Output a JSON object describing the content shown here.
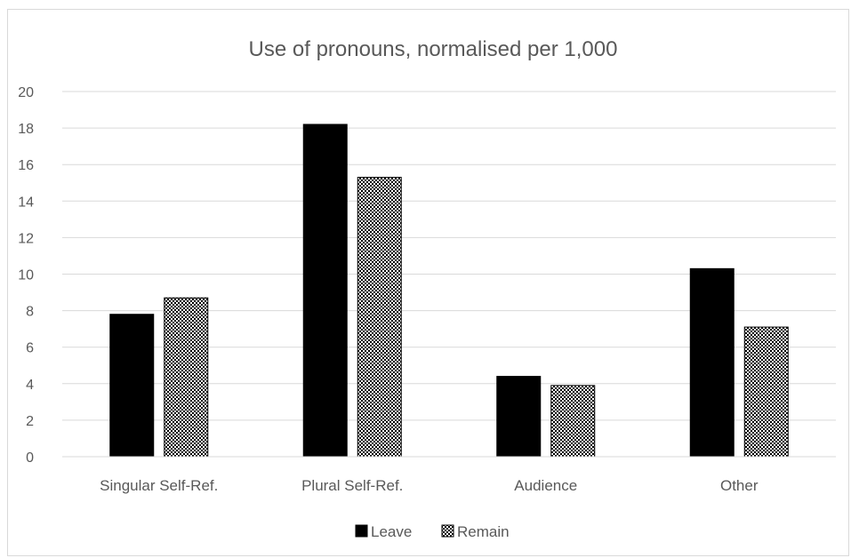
{
  "chart_data": {
    "type": "bar",
    "title": "Use of pronouns, normalised per 1,000",
    "xlabel": "",
    "ylabel": "",
    "categories": [
      "Singular Self-Ref.",
      "Plural Self-Ref.",
      "Audience",
      "Other"
    ],
    "series": [
      {
        "name": "Leave",
        "values": [
          7.8,
          18.2,
          4.4,
          10.3
        ],
        "fill": "solid",
        "color": "#000000"
      },
      {
        "name": "Remain",
        "values": [
          8.7,
          15.3,
          3.9,
          7.1
        ],
        "fill": "checkered",
        "color": "#000000"
      }
    ],
    "ylim": [
      0,
      20
    ],
    "yticks": [
      0,
      2,
      4,
      6,
      8,
      10,
      12,
      14,
      16,
      18,
      20
    ],
    "grid": true,
    "legend_position": "bottom"
  }
}
